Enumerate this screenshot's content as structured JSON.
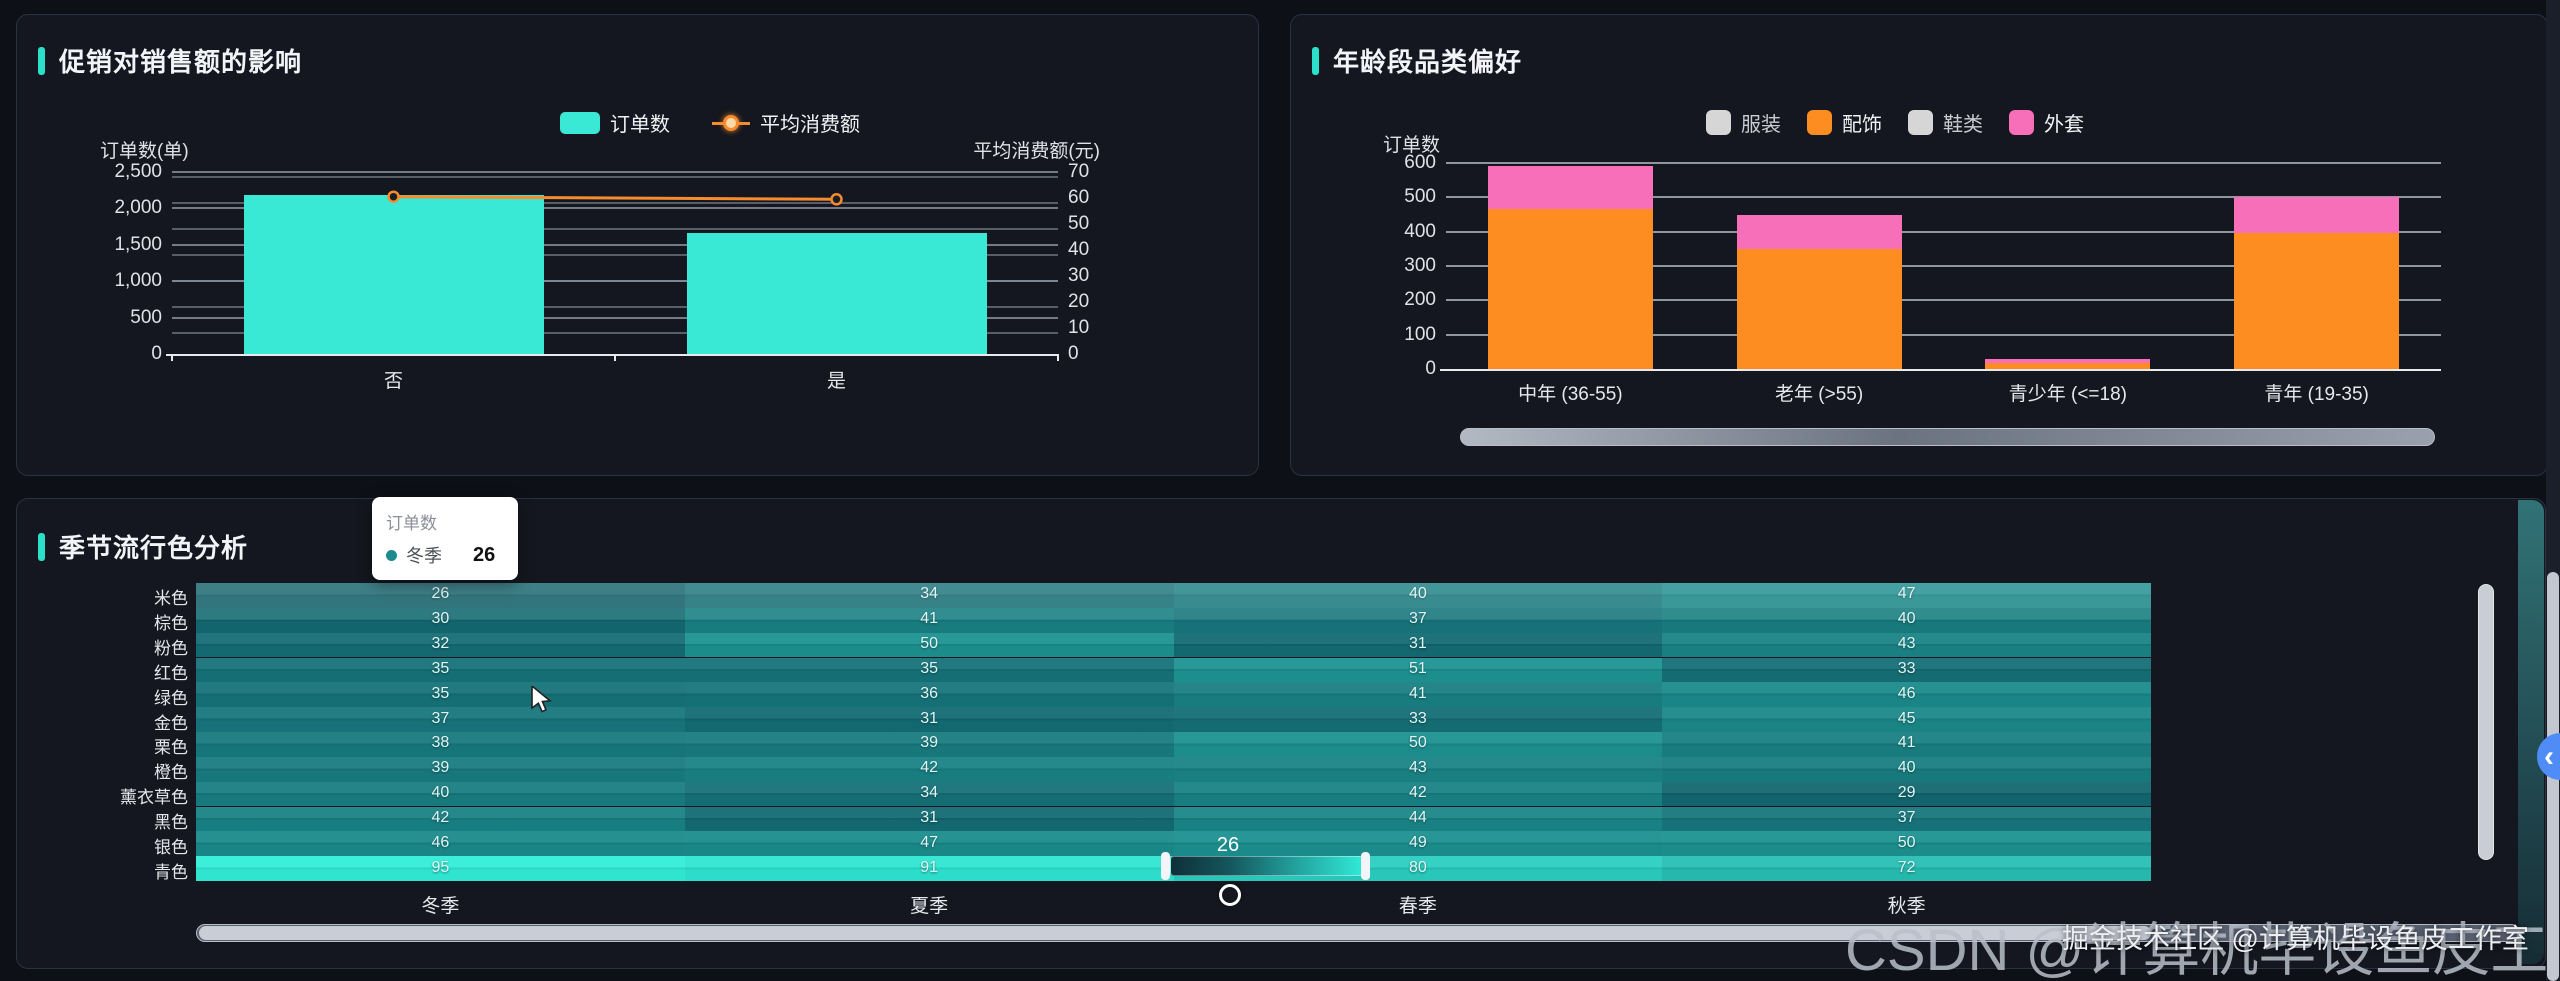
{
  "panels": {
    "promo": {
      "title": "促销对销售额的影响"
    },
    "age": {
      "title": "年龄段品类偏好"
    },
    "season": {
      "title": "季节流行色分析"
    }
  },
  "colors": {
    "accent_cyan": "#2be0ca",
    "bar_cyan": "#3ae8d6",
    "line_orange": "#f78b2d",
    "stack_orange": "#fd8c21",
    "stack_pink": "#f76fb8",
    "legend_disabled": "#d6d6d6",
    "heat_low": "#12616b",
    "heat_high": "#31eed9"
  },
  "chart_data": [
    {
      "id": "promo",
      "type": "bar",
      "title": "促销对销售额的影响",
      "categories": [
        "否",
        "是"
      ],
      "series": [
        {
          "name": "订单数",
          "type": "bar",
          "axis": "left",
          "color": "#3ae8d6",
          "values": [
            2180,
            1660
          ]
        },
        {
          "name": "平均消费额",
          "type": "line",
          "axis": "right",
          "color": "#f78b2d",
          "values": [
            60.5,
            59.5
          ]
        }
      ],
      "y_left": {
        "name": "订单数(单)",
        "min": 0,
        "max": 2500,
        "step": 500
      },
      "y_right": {
        "name": "平均消费额(元)",
        "min": 0,
        "max": 70,
        "step": 10
      },
      "legend_position": "top",
      "grid": true
    },
    {
      "id": "age",
      "type": "bar",
      "title": "年龄段品类偏好",
      "categories": [
        "中年 (36-55)",
        "老年 (>55)",
        "青少年 (<=18)",
        "青年 (19-35)"
      ],
      "series": [
        {
          "name": "服装",
          "color": "#d6d6d6",
          "disabled": true
        },
        {
          "name": "配饰",
          "color": "#fd8c21",
          "values": [
            465,
            350,
            18,
            395
          ]
        },
        {
          "name": "鞋类",
          "color": "#d6d6d6",
          "disabled": true
        },
        {
          "name": "外套",
          "color": "#f76fb8",
          "values": [
            125,
            100,
            12,
            105
          ]
        }
      ],
      "stacked": true,
      "y_left": {
        "name": "订单数",
        "min": 0,
        "max": 600,
        "step": 100
      },
      "legend_position": "top",
      "grid": true
    },
    {
      "id": "season",
      "type": "heatmap",
      "title": "季节流行色分析",
      "x_categories": [
        "冬季",
        "夏季",
        "春季",
        "秋季"
      ],
      "y_categories": [
        "米色",
        "棕色",
        "粉色",
        "红色",
        "绿色",
        "金色",
        "栗色",
        "橙色",
        "薰衣草色",
        "黑色",
        "银色",
        "青色"
      ],
      "rows": [
        {
          "label": "米色",
          "values": [
            26,
            34,
            40,
            47
          ]
        },
        {
          "label": "棕色",
          "values": [
            30,
            41,
            37,
            40
          ]
        },
        {
          "label": "粉色",
          "values": [
            32,
            50,
            31,
            43
          ]
        },
        {
          "label": "红色",
          "values": [
            35,
            35,
            51,
            33
          ]
        },
        {
          "label": "绿色",
          "values": [
            35,
            36,
            41,
            46
          ]
        },
        {
          "label": "金色",
          "values": [
            37,
            31,
            33,
            45
          ]
        },
        {
          "label": "栗色",
          "values": [
            38,
            39,
            50,
            41
          ]
        },
        {
          "label": "橙色",
          "values": [
            39,
            42,
            43,
            40
          ]
        },
        {
          "label": "薰衣草色",
          "values": [
            40,
            34,
            42,
            29
          ]
        },
        {
          "label": "黑色",
          "values": [
            42,
            31,
            44,
            37
          ]
        },
        {
          "label": "银色",
          "values": [
            46,
            47,
            49,
            50
          ]
        },
        {
          "label": "青色",
          "values": [
            95,
            91,
            80,
            72
          ]
        }
      ],
      "colorscale": {
        "min": 26,
        "max": 95,
        "low": "#12616b",
        "high": "#31eed9"
      },
      "tooltip": {
        "title": "订单数",
        "series": "冬季",
        "value": "26",
        "marker_color": "#1f8a8c"
      },
      "visualmap": {
        "indicator_label": "26"
      }
    }
  ],
  "watermarks": {
    "large": "CSDN @计算机毕设鱼皮工作室",
    "small": "掘金技术社区 @计算机毕设鱼皮工作室"
  },
  "floating_button": {
    "glyph": "‹"
  }
}
